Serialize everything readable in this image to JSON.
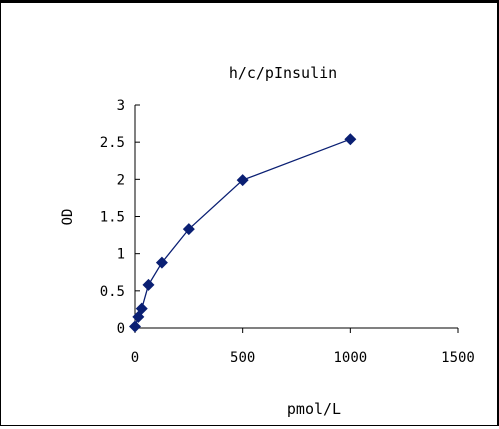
{
  "chart_data": {
    "type": "scatter",
    "title": "h/c/pInsulin",
    "xlabel": "pmol/L",
    "ylabel": "OD",
    "xlim": [
      0,
      1500
    ],
    "ylim": [
      0,
      3
    ],
    "xticks": [
      0,
      500,
      1000,
      1500
    ],
    "yticks": [
      0,
      0.5,
      1,
      1.5,
      2,
      2.5,
      3
    ],
    "xtick_labels": [
      "0",
      "500",
      "1000",
      "1500"
    ],
    "ytick_labels": [
      "0",
      "0.5",
      "1",
      "1.5",
      "2",
      "2.5",
      "3"
    ],
    "grid": false,
    "legend": "none",
    "line_connected": true,
    "color": "#0a1f73",
    "series": [
      {
        "x": [
          0,
          15.6,
          31.3,
          62.5,
          125,
          250,
          500,
          1000
        ],
        "y": [
          0.02,
          0.15,
          0.26,
          0.58,
          0.88,
          1.33,
          1.99,
          2.54
        ]
      }
    ]
  }
}
